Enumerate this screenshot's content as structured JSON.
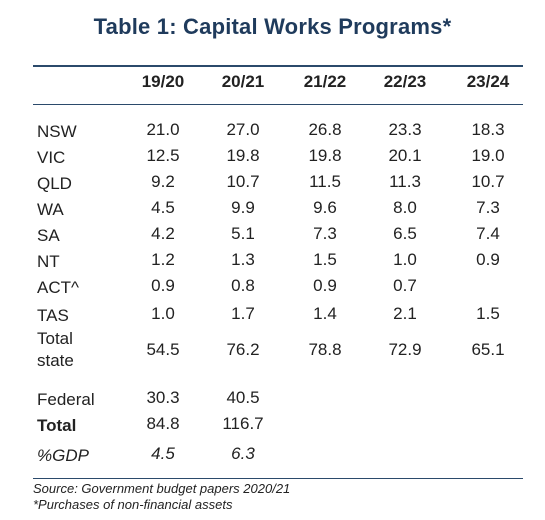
{
  "title": "Table 1: Capital Works Programs*",
  "columns": [
    "19/20",
    "20/21",
    "21/22",
    "22/23",
    "23/24"
  ],
  "rows": [
    {
      "label": "NSW",
      "values": [
        "21.0",
        "27.0",
        "26.8",
        "23.3",
        "18.3"
      ]
    },
    {
      "label": "VIC",
      "values": [
        "12.5",
        "19.8",
        "19.8",
        "20.1",
        "19.0"
      ]
    },
    {
      "label": "QLD",
      "values": [
        "9.2",
        "10.7",
        "11.5",
        "11.3",
        "10.7"
      ]
    },
    {
      "label": "WA",
      "values": [
        "4.5",
        "9.9",
        "9.6",
        "8.0",
        "7.3"
      ]
    },
    {
      "label": "SA",
      "values": [
        "4.2",
        "5.1",
        "7.3",
        "6.5",
        "7.4"
      ]
    },
    {
      "label": "NT",
      "values": [
        "1.2",
        "1.3",
        "1.5",
        "1.0",
        "0.9"
      ]
    },
    {
      "label": "ACT^",
      "values": [
        "0.9",
        "0.8",
        "0.9",
        "0.7",
        ""
      ]
    },
    {
      "label": "TAS",
      "values": [
        "1.0",
        "1.7",
        "1.4",
        "2.1",
        "1.5"
      ]
    },
    {
      "label": "Total state",
      "values": [
        "54.5",
        "76.2",
        "78.8",
        "72.9",
        "65.1"
      ]
    },
    {
      "label": "Federal",
      "values": [
        "30.3",
        "40.5",
        "",
        "",
        ""
      ]
    },
    {
      "label": "Total",
      "values": [
        "84.8",
        "116.7",
        "",
        "",
        ""
      ]
    },
    {
      "label": "%GDP",
      "values": [
        "4.5",
        "6.3",
        "",
        "",
        ""
      ]
    }
  ],
  "source": "Source: Government budget papers 2020/21",
  "footnote": "*Purchases of non-financial assets"
}
